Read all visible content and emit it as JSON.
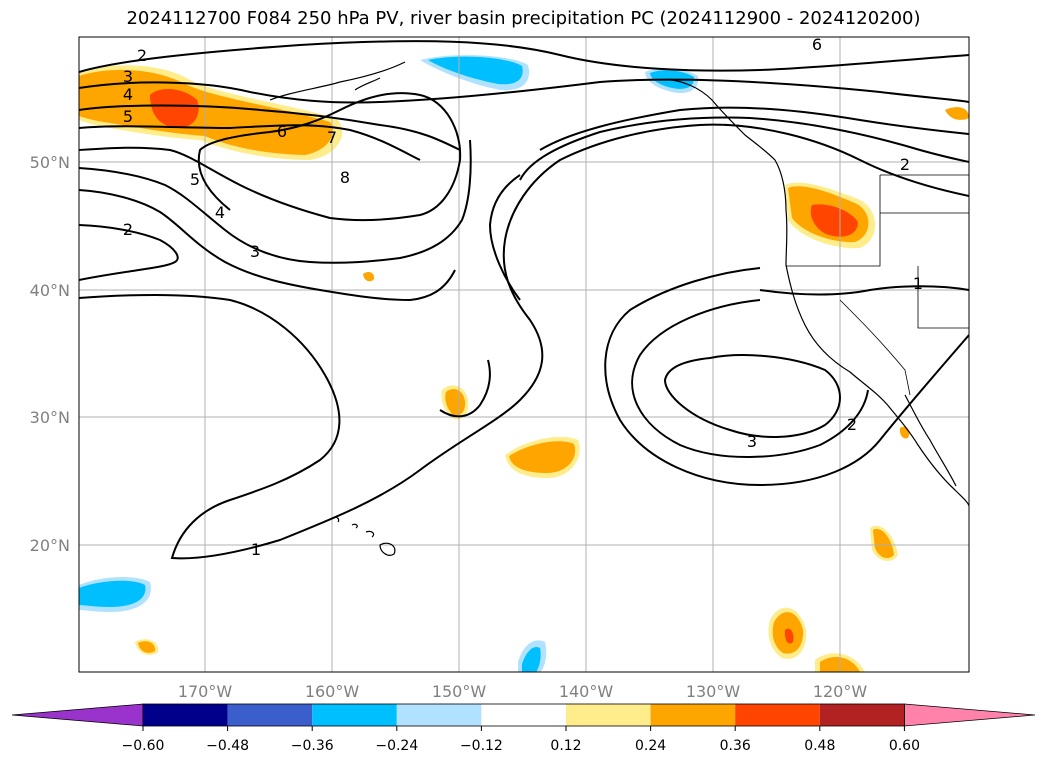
{
  "title": "2024112700 F084 250 hPa PV, river basin precipitation PC (2024112900 - 2024120200)",
  "map": {
    "lat_labels": [
      "50°N",
      "40°N",
      "30°N",
      "20°N"
    ],
    "lon_labels": [
      "170°W",
      "160°W",
      "150°W",
      "140°W",
      "130°W",
      "120°W"
    ],
    "contour_labels": [
      "2",
      "3",
      "4",
      "5",
      "6",
      "7",
      "8",
      "5",
      "4",
      "3",
      "2",
      "1",
      "6",
      "2",
      "1",
      "3",
      "2"
    ],
    "colors": {
      "contour": "#000000",
      "grid": "#b0b0b0",
      "coast": "#000000"
    }
  },
  "colorbar": {
    "levels": [
      "−0.60",
      "−0.48",
      "−0.36",
      "−0.24",
      "−0.12",
      "0.12",
      "0.24",
      "0.36",
      "0.48",
      "0.60"
    ],
    "colors": [
      "#9933cc",
      "#00008b",
      "#3a5fcd",
      "#00bfff",
      "#b0e2ff",
      "#ffffff",
      "#ffec8b",
      "#ffa500",
      "#ff4500",
      "#b22222",
      "#ff82ab"
    ]
  }
}
